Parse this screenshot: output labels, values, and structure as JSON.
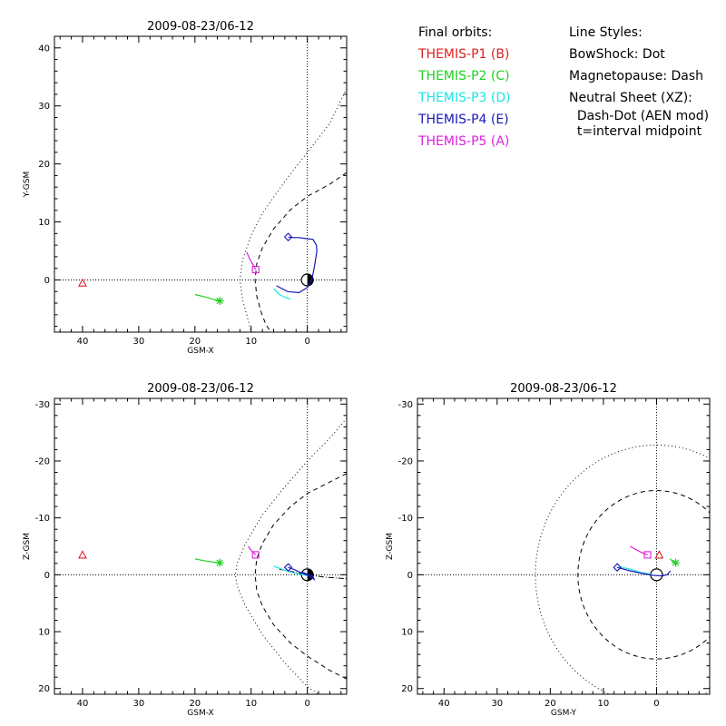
{
  "legend": {
    "orbits_title": "Final orbits:",
    "orbits": [
      {
        "label": "THEMIS-P1 (B)",
        "color": "#e02020"
      },
      {
        "label": "THEMIS-P2 (C)",
        "color": "#1fd11f"
      },
      {
        "label": "THEMIS-P3 (D)",
        "color": "#19e6e6"
      },
      {
        "label": "THEMIS-P4 (E)",
        "color": "#1a1ab8"
      },
      {
        "label": "THEMIS-P5 (A)",
        "color": "#dd1fdd"
      }
    ],
    "styles_title": "Line Styles:",
    "styles": [
      "BowShock: Dot",
      "Magnetopause: Dash",
      "Neutral Sheet (XZ):",
      "  Dash-Dot (AEN mod)",
      "  t=interval midpoint"
    ]
  },
  "chart_data": [
    {
      "type": "line",
      "title": "2009-08-23/06-12",
      "xlabel": "GSM-X",
      "ylabel": "Y-GSM",
      "xlim": [
        45,
        -7
      ],
      "ylim": [
        42,
        -9
      ],
      "xticks": [
        40,
        30,
        20,
        10,
        0
      ],
      "yticks": [
        0,
        10,
        20,
        30,
        40
      ],
      "bow_shock": [
        [
          -7,
          33
        ],
        [
          -4,
          27
        ],
        [
          0,
          22
        ],
        [
          4,
          17
        ],
        [
          8,
          11.5
        ],
        [
          10,
          7.7
        ],
        [
          11.5,
          3.5
        ],
        [
          12,
          0
        ],
        [
          11.5,
          -3.5
        ],
        [
          10.5,
          -7
        ],
        [
          10,
          -9
        ]
      ],
      "magnetopause": [
        [
          -7,
          18.5
        ],
        [
          -4,
          16.5
        ],
        [
          0,
          14.4
        ],
        [
          3,
          12.1
        ],
        [
          6,
          8.8
        ],
        [
          8,
          5.5
        ],
        [
          9,
          2.8
        ],
        [
          9.3,
          0
        ],
        [
          9,
          -2.8
        ],
        [
          8.2,
          -5.6
        ],
        [
          7.4,
          -7.6
        ],
        [
          6.5,
          -9
        ]
      ],
      "series": [
        {
          "name": "THEMIS-P1 (B)",
          "points": [
            [
              40,
              -0.5
            ]
          ],
          "marker": "triangle",
          "end": [
            40,
            -0.5
          ]
        },
        {
          "name": "THEMIS-P2 (C)",
          "points": [
            [
              20,
              -2.5
            ],
            [
              18,
              -3
            ],
            [
              16.5,
              -3.4
            ],
            [
              15.6,
              -3.6
            ]
          ],
          "marker": "asterisk",
          "end": [
            15.6,
            -3.6
          ]
        },
        {
          "name": "THEMIS-P3 (D)",
          "points": [
            [
              6,
              -1.5
            ],
            [
              5,
              -2.5
            ],
            [
              4,
              -3
            ],
            [
              3,
              -3.3
            ]
          ],
          "marker": "none",
          "end": null
        },
        {
          "name": "THEMIS-P4 (E)",
          "points": [
            [
              5.5,
              -1
            ],
            [
              3.5,
              -2
            ],
            [
              1.5,
              -2.2
            ],
            [
              0,
              -1.3
            ],
            [
              -0.8,
              0
            ],
            [
              -1.3,
              2.5
            ],
            [
              -1.7,
              5
            ],
            [
              -1.6,
              6
            ],
            [
              -1,
              7
            ],
            [
              0,
              7.1
            ],
            [
              1.5,
              7.3
            ],
            [
              2.8,
              7.3
            ],
            [
              3.4,
              7.4
            ]
          ],
          "marker": "diamond",
          "end": [
            3.4,
            7.4
          ]
        },
        {
          "name": "THEMIS-P5 (A)",
          "points": [
            [
              10.8,
              4.8
            ],
            [
              10.2,
              3.5
            ],
            [
              9.7,
              2.7
            ],
            [
              9.2,
              1.8
            ]
          ],
          "marker": "square",
          "end": [
            9.2,
            1.8
          ]
        }
      ]
    },
    {
      "type": "line",
      "title": "2009-08-23/06-12",
      "xlabel": "GSM-X",
      "ylabel": "Z-GSM",
      "xlim": [
        45,
        -7
      ],
      "ylim": [
        -31,
        21
      ],
      "xticks": [
        40,
        30,
        20,
        10,
        0
      ],
      "yticks": [
        -30,
        -20,
        -10,
        0,
        10,
        20
      ],
      "bow_shock": [
        [
          -7,
          -27.5
        ],
        [
          -4,
          -24
        ],
        [
          0,
          -20
        ],
        [
          4,
          -15.5
        ],
        [
          8,
          -10.5
        ],
        [
          11,
          -5.5
        ],
        [
          12.5,
          -2
        ],
        [
          12.8,
          0
        ],
        [
          12.5,
          2
        ],
        [
          11,
          5.5
        ],
        [
          8,
          10.5
        ],
        [
          4,
          15.5
        ],
        [
          0,
          19.7
        ],
        [
          -2,
          21
        ]
      ],
      "magnetopause": [
        [
          -7,
          -17.8
        ],
        [
          -4,
          -16.3
        ],
        [
          0,
          -14.3
        ],
        [
          3,
          -12
        ],
        [
          6,
          -8.8
        ],
        [
          8,
          -5.5
        ],
        [
          9,
          -2.8
        ],
        [
          9.3,
          0
        ],
        [
          9,
          2.8
        ],
        [
          8,
          5.5
        ],
        [
          6,
          8.8
        ],
        [
          3,
          12
        ],
        [
          0,
          14.3
        ],
        [
          -4,
          16.8
        ],
        [
          -7,
          18.3
        ]
      ],
      "neutral_sheet": [
        [
          5,
          -1
        ],
        [
          2,
          -0.4
        ],
        [
          0,
          0
        ],
        [
          -3,
          0.4
        ],
        [
          -7,
          0.7
        ]
      ],
      "series": [
        {
          "name": "THEMIS-P1 (B)",
          "points": [
            [
              40,
              -3.5
            ]
          ],
          "marker": "triangle",
          "end": [
            40,
            -3.5
          ]
        },
        {
          "name": "THEMIS-P2 (C)",
          "points": [
            [
              20,
              -2.8
            ],
            [
              18,
              -2.4
            ],
            [
              16.5,
              -2.2
            ],
            [
              15.6,
              -2.1
            ]
          ],
          "marker": "asterisk",
          "end": [
            15.6,
            -2.1
          ]
        },
        {
          "name": "THEMIS-P3 (D)",
          "points": [
            [
              6,
              -1.5
            ],
            [
              4,
              -0.8
            ],
            [
              2,
              -0.2
            ],
            [
              0,
              0.1
            ]
          ],
          "marker": "none",
          "end": null
        },
        {
          "name": "THEMIS-P4 (E)",
          "points": [
            [
              3.4,
              -1.3
            ],
            [
              2.3,
              -0.9
            ],
            [
              1,
              -0.3
            ],
            [
              0,
              0.1
            ],
            [
              -0.8,
              0.5
            ],
            [
              -1.2,
              0.8
            ],
            [
              -1,
              0.3
            ],
            [
              0,
              -0.1
            ],
            [
              1,
              -0.5
            ]
          ],
          "marker": "diamond",
          "end": [
            3.4,
            -1.3
          ]
        },
        {
          "name": "THEMIS-P5 (A)",
          "points": [
            [
              10.5,
              -5
            ],
            [
              10,
              -4.3
            ],
            [
              9.5,
              -3.8
            ],
            [
              9.2,
              -3.5
            ]
          ],
          "marker": "square",
          "end": [
            9.2,
            -3.5
          ]
        }
      ]
    },
    {
      "type": "line",
      "title": "2009-08-23/06-12",
      "xlabel": "GSM-Y",
      "ylabel": "Z-GSM",
      "xlim": [
        45,
        -10
      ],
      "ylim": [
        -31,
        21
      ],
      "xticks": [
        40,
        30,
        20,
        10,
        0
      ],
      "yticks": [
        -30,
        -20,
        -10,
        0,
        10,
        20
      ],
      "bow_shock_radius": 22.8,
      "magnetopause_radius": 14.8,
      "series": [
        {
          "name": "THEMIS-P1 (B)",
          "points": [
            [
              -0.5,
              -3.5
            ]
          ],
          "marker": "triangle",
          "end": [
            -0.5,
            -3.5
          ]
        },
        {
          "name": "THEMIS-P2 (C)",
          "points": [
            [
              -2.5,
              -2.8
            ],
            [
              -3,
              -2.4
            ],
            [
              -3.4,
              -2.2
            ],
            [
              -3.6,
              -2.1
            ]
          ],
          "marker": "asterisk",
          "end": [
            -3.6,
            -2.1
          ]
        },
        {
          "name": "THEMIS-P3 (D)",
          "points": [
            [
              7,
              -1.4
            ],
            [
              5,
              -1
            ],
            [
              3,
              -0.4
            ],
            [
              1,
              -0.1
            ]
          ],
          "marker": "none",
          "end": null
        },
        {
          "name": "THEMIS-P4 (E)",
          "points": [
            [
              7.4,
              -1.3
            ],
            [
              5,
              -0.7
            ],
            [
              2.5,
              -0.2
            ],
            [
              0.5,
              0.1
            ],
            [
              -1,
              0.2
            ],
            [
              -2,
              0
            ],
            [
              -2.6,
              -0.7
            ]
          ],
          "marker": "diamond",
          "end": [
            7.4,
            -1.3
          ]
        },
        {
          "name": "THEMIS-P5 (A)",
          "points": [
            [
              5,
              -5
            ],
            [
              4,
              -4.5
            ],
            [
              3,
              -4
            ],
            [
              2,
              -3.6
            ],
            [
              1.7,
              -3.5
            ]
          ],
          "marker": "square",
          "end": [
            1.7,
            -3.5
          ]
        }
      ]
    }
  ]
}
